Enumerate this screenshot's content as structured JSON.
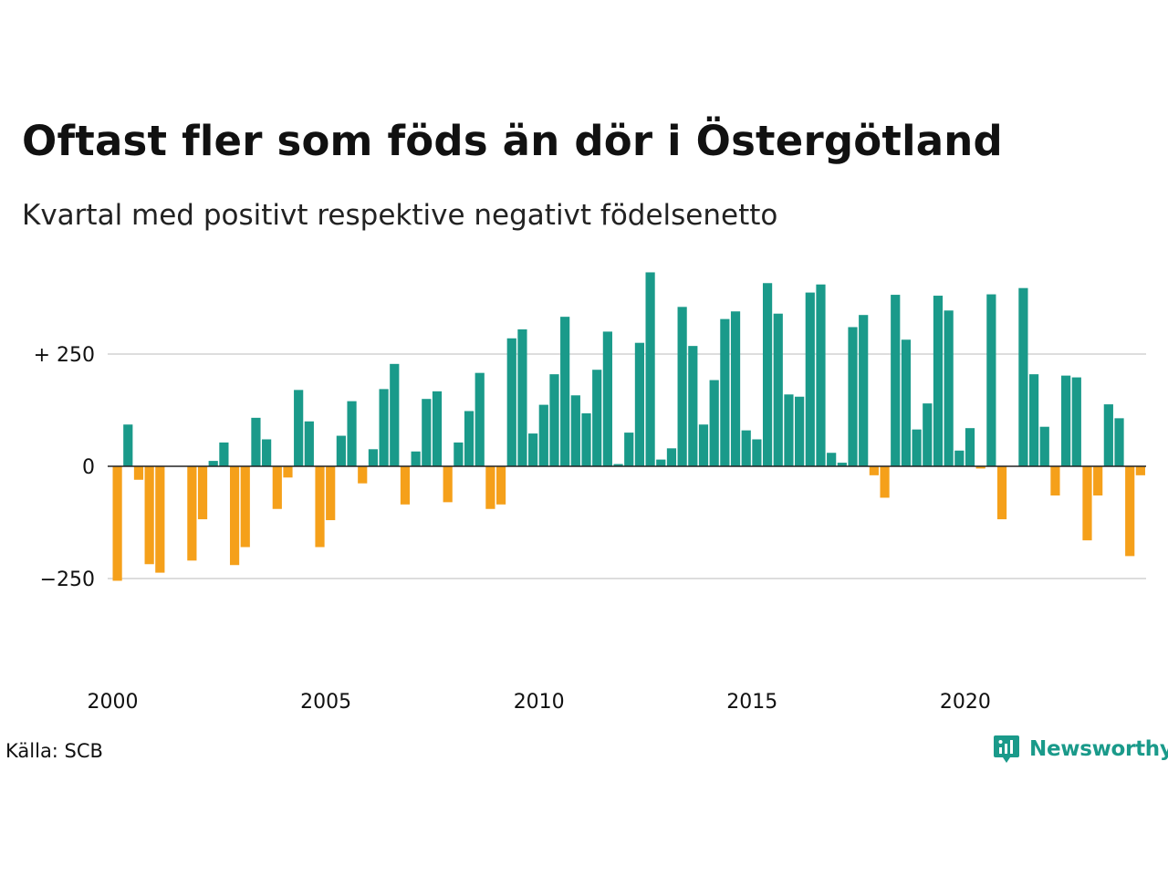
{
  "title": "Oftast fler som föds än dör i Östergötland",
  "subtitle": "Kvartal med positivt respektive negativt födelsenetto",
  "source": "Källa: SCB",
  "brand": {
    "name": "Newsworthy",
    "icon": "newsworthy-logo-icon"
  },
  "colors": {
    "positive": "#1a9a8a",
    "negative": "#f5a01a",
    "grid": "#dddddd",
    "zero_line": "#222222"
  },
  "chart_data": {
    "type": "bar",
    "x_start": "2000 Q1",
    "x_tick_labels": [
      "2000",
      "2005",
      "2010",
      "2015",
      "2020"
    ],
    "y_tick_labels": [
      "+ 250",
      "0",
      "−250"
    ],
    "y_ticks": [
      250,
      0,
      -250
    ],
    "ylim": [
      -460,
      430
    ],
    "grid": true,
    "values": [
      -255,
      93,
      -30,
      -218,
      -237,
      0,
      0,
      -210,
      -118,
      12,
      53,
      -220,
      -180,
      108,
      60,
      -95,
      -25,
      170,
      100,
      -180,
      -120,
      68,
      145,
      -38,
      38,
      172,
      228,
      -85,
      33,
      150,
      167,
      -80,
      53,
      123,
      208,
      -95,
      -85,
      285,
      305,
      73,
      137,
      205,
      333,
      158,
      118,
      215,
      300,
      5,
      75,
      275,
      432,
      15,
      40,
      355,
      268,
      93,
      192,
      328,
      345,
      80,
      60,
      408,
      340,
      160,
      155,
      387,
      405,
      30,
      8,
      310,
      337,
      -20,
      -70,
      382,
      282,
      82,
      140,
      380,
      347,
      35,
      85,
      -5,
      383,
      -118,
      0,
      397,
      205,
      88,
      -65,
      202,
      198,
      -165,
      -65,
      138,
      107,
      -200,
      -20
    ]
  }
}
